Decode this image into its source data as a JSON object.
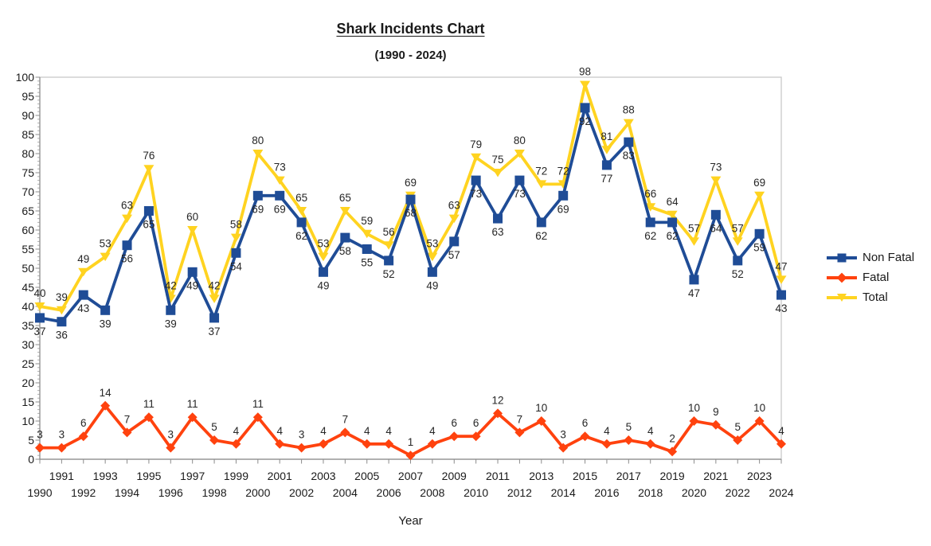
{
  "chart_data": {
    "type": "line",
    "title": "Shark Incidents Chart",
    "subtitle": "(1990 - 2024)",
    "xlabel": "Year",
    "ylabel": "",
    "ylim": [
      0,
      100
    ],
    "y_tick_step": 5,
    "y_minor_tick_step": 1,
    "grid": false,
    "legend_position": "right",
    "x": [
      1990,
      1991,
      1992,
      1993,
      1994,
      1995,
      1996,
      1997,
      1998,
      1999,
      2000,
      2001,
      2002,
      2003,
      2004,
      2005,
      2006,
      2007,
      2008,
      2009,
      2010,
      2011,
      2012,
      2013,
      2014,
      2015,
      2016,
      2017,
      2018,
      2019,
      2020,
      2021,
      2022,
      2023,
      2024
    ],
    "series": [
      {
        "name": "Non Fatal",
        "color": "#1F4C96",
        "marker": "square",
        "label_position": "below",
        "values": [
          37,
          36,
          43,
          39,
          56,
          65,
          39,
          49,
          37,
          54,
          69,
          69,
          62,
          49,
          58,
          55,
          52,
          68,
          49,
          57,
          73,
          63,
          73,
          62,
          69,
          92,
          77,
          83,
          62,
          62,
          47,
          64,
          52,
          59,
          43
        ]
      },
      {
        "name": "Fatal",
        "color": "#FF420E",
        "marker": "diamond",
        "label_position": "above",
        "values": [
          3,
          3,
          6,
          14,
          7,
          11,
          3,
          11,
          5,
          4,
          11,
          4,
          3,
          4,
          7,
          4,
          4,
          1,
          4,
          6,
          6,
          12,
          7,
          10,
          3,
          6,
          4,
          5,
          4,
          2,
          10,
          9,
          5,
          10,
          4
        ]
      },
      {
        "name": "Total",
        "color": "#FFD320",
        "marker": "triangle-down",
        "label_position": "above",
        "values": [
          40,
          39,
          49,
          53,
          63,
          76,
          42,
          60,
          42,
          58,
          80,
          73,
          65,
          53,
          65,
          59,
          56,
          69,
          53,
          63,
          79,
          75,
          80,
          72,
          72,
          98,
          81,
          88,
          66,
          64,
          57,
          73,
          57,
          69,
          47
        ]
      }
    ],
    "colors": {
      "axis_text": "#1a1a1a",
      "data_label": "#262626",
      "axis_line": "#8c8c8c",
      "minor_tick": "#b0b0b0",
      "wall_border": "#c9c9c9"
    }
  }
}
